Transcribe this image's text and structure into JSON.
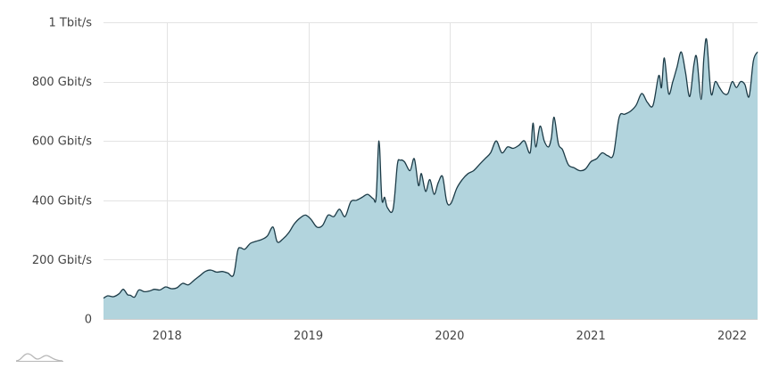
{
  "chart_data": {
    "type": "area",
    "x_unit": "year",
    "xlim": [
      2017.55,
      2022.18
    ],
    "ylim": [
      0,
      1000
    ],
    "y_ticks": [
      {
        "value": 0,
        "label": "0"
      },
      {
        "value": 200,
        "label": "200 Gbit/s"
      },
      {
        "value": 400,
        "label": "400 Gbit/s"
      },
      {
        "value": 600,
        "label": "600 Gbit/s"
      },
      {
        "value": 800,
        "label": "800 Gbit/s"
      },
      {
        "value": 1000,
        "label": "1 Tbit/s"
      }
    ],
    "x_ticks": [
      {
        "value": 2018,
        "label": "2018"
      },
      {
        "value": 2019,
        "label": "2019"
      },
      {
        "value": 2020,
        "label": "2020"
      },
      {
        "value": 2021,
        "label": "2021"
      },
      {
        "value": 2022,
        "label": "2022"
      }
    ],
    "grid": true,
    "colors": {
      "fill": "#b2d4dd",
      "line": "#1c3b47",
      "grid": "#e3e3e3",
      "top_label_accent": "#6b7a2a"
    },
    "series": [
      {
        "x": [
          2017.55,
          2017.58,
          2017.62,
          2017.66,
          2017.69,
          2017.72,
          2017.74,
          2017.77,
          2017.8,
          2017.84,
          2017.88,
          2017.91,
          2017.95,
          2017.99,
          2018.03,
          2018.07,
          2018.11,
          2018.15,
          2018.19,
          2018.23,
          2018.27,
          2018.31,
          2018.35,
          2018.39,
          2018.43,
          2018.47,
          2018.5,
          2018.52,
          2018.55,
          2018.59,
          2018.63,
          2018.67,
          2018.71,
          2018.75,
          2018.78,
          2018.82,
          2018.86,
          2018.9,
          2018.94,
          2018.98,
          2019.02,
          2019.06,
          2019.1,
          2019.14,
          2019.18,
          2019.22,
          2019.26,
          2019.3,
          2019.34,
          2019.38,
          2019.42,
          2019.46,
          2019.48,
          2019.5,
          2019.52,
          2019.54,
          2019.56,
          2019.6,
          2019.63,
          2019.65,
          2019.68,
          2019.72,
          2019.75,
          2019.78,
          2019.8,
          2019.83,
          2019.86,
          2019.89,
          2019.92,
          2019.95,
          2019.98,
          2020.01,
          2020.05,
          2020.09,
          2020.13,
          2020.17,
          2020.21,
          2020.25,
          2020.29,
          2020.33,
          2020.37,
          2020.41,
          2020.45,
          2020.49,
          2020.53,
          2020.57,
          2020.59,
          2020.61,
          2020.64,
          2020.67,
          2020.7,
          2020.72,
          2020.74,
          2020.77,
          2020.8,
          2020.84,
          2020.88,
          2020.92,
          2020.96,
          2021.0,
          2021.04,
          2021.08,
          2021.12,
          2021.16,
          2021.2,
          2021.24,
          2021.28,
          2021.32,
          2021.36,
          2021.4,
          2021.44,
          2021.48,
          2021.5,
          2021.52,
          2021.55,
          2021.58,
          2021.61,
          2021.64,
          2021.67,
          2021.7,
          2021.73,
          2021.75,
          2021.78,
          2021.8,
          2021.82,
          2021.85,
          2021.88,
          2021.91,
          2021.94,
          2021.97,
          2022.0,
          2022.03,
          2022.06,
          2022.09,
          2022.12,
          2022.15,
          2022.18
        ],
        "y": [
          70,
          78,
          75,
          85,
          100,
          82,
          80,
          74,
          98,
          92,
          95,
          100,
          98,
          108,
          102,
          105,
          120,
          115,
          130,
          145,
          160,
          165,
          158,
          160,
          155,
          148,
          230,
          240,
          235,
          255,
          262,
          268,
          280,
          310,
          260,
          270,
          290,
          320,
          340,
          350,
          335,
          310,
          315,
          350,
          345,
          370,
          345,
          395,
          400,
          410,
          420,
          405,
          410,
          600,
          405,
          410,
          375,
          370,
          520,
          535,
          530,
          500,
          540,
          450,
          490,
          430,
          470,
          420,
          460,
          480,
          395,
          390,
          440,
          470,
          490,
          500,
          520,
          540,
          560,
          600,
          560,
          580,
          575,
          585,
          600,
          560,
          660,
          580,
          650,
          600,
          580,
          610,
          680,
          590,
          570,
          520,
          510,
          500,
          505,
          530,
          540,
          560,
          550,
          555,
          680,
          690,
          700,
          720,
          760,
          730,
          720,
          820,
          780,
          880,
          760,
          800,
          850,
          900,
          830,
          750,
          860,
          880,
          740,
          880,
          940,
          760,
          800,
          780,
          760,
          760,
          800,
          780,
          800,
          790,
          750,
          870,
          900
        ]
      }
    ]
  },
  "legend_icon": "mountain-area-icon"
}
